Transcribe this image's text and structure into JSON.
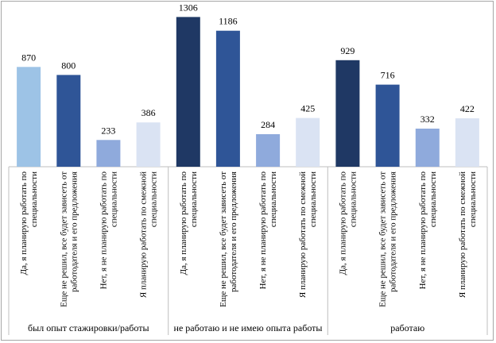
{
  "chart_data": {
    "type": "bar",
    "groups": [
      {
        "label": "был опыт стажировки/работы",
        "values": [
          870,
          800,
          233,
          386
        ]
      },
      {
        "label": "не работаю и не имею опыта работы",
        "values": [
          1306,
          1186,
          284,
          425
        ]
      },
      {
        "label": "работаю",
        "values": [
          929,
          716,
          332,
          422
        ]
      }
    ],
    "categories": [
      [
        "Да, я планирую работать по",
        "специальности"
      ],
      [
        "Еще не решил, все будет зависеть от",
        "работодателя и его предложения"
      ],
      [
        "Нет, я не планирую работать по",
        "специальности"
      ],
      [
        "Я планирую работать по смежной",
        "специальности"
      ]
    ],
    "colors": [
      "#1f3864",
      "#2f5597",
      "#8faadc",
      "#dae3f3"
    ],
    "first_bar_colors": [
      "#9dc3e6",
      "#1f3864",
      "#1f3864"
    ],
    "ylim": [
      0,
      1350
    ],
    "grid": false,
    "legend": "none"
  }
}
